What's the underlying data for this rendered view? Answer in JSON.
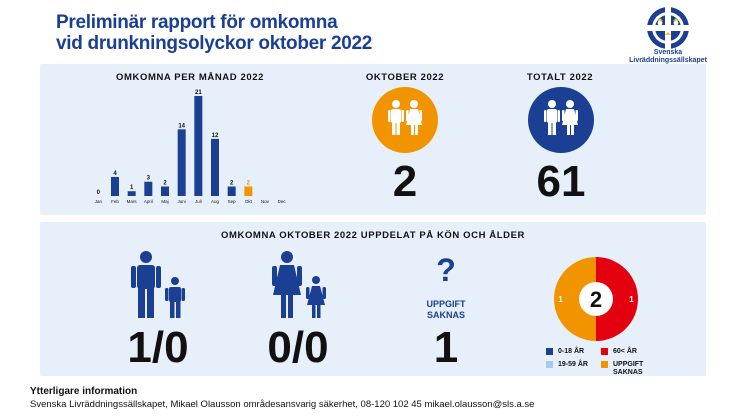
{
  "title_line1": "Preliminär rapport för omkomna",
  "title_line2": "vid drunkningsolyckor oktober 2022",
  "logo": {
    "icon": "lifesaving-crest-icon",
    "text_line1": "Svenska",
    "text_line2": "Livräddningssällskapet"
  },
  "colors": {
    "navy": "#1a3f93",
    "orange": "#f29400",
    "red": "#e3000f",
    "light_blue": "#a9c9ec",
    "panel": "#e7f0fa"
  },
  "chart_data": [
    {
      "type": "bar",
      "title": "OMKOMNA PER MÅNAD 2022",
      "categories": [
        "Jan",
        "Feb",
        "Mars",
        "April",
        "Maj",
        "Juni",
        "Juli",
        "Aug",
        "Sep",
        "Okt",
        "Nov",
        "Dec"
      ],
      "values": [
        0,
        4,
        1,
        3,
        2,
        14,
        21,
        12,
        2,
        2,
        null,
        null
      ],
      "highlight_index": 9,
      "ylim": [
        0,
        21
      ],
      "grid": false
    },
    {
      "type": "pie",
      "center_label": "2",
      "slices": [
        {
          "name": "0-18 ÅR",
          "value": 0
        },
        {
          "name": "19-59 ÅR",
          "value": 0
        },
        {
          "name": "60< ÅR",
          "value": 1
        },
        {
          "name": "UPPGIFT SAKNAS",
          "value": 1
        }
      ]
    }
  ],
  "oktober": {
    "heading": "OKTOBER 2022",
    "value": "2",
    "icon": "people-male-female-icon"
  },
  "totalt": {
    "heading": "TOTALT 2022",
    "value": "61",
    "icon": "people-male-female-icon"
  },
  "breakdown": {
    "heading": "OMKOMNA OKTOBER 2022 UPPDELAT PÅ KÖN OCH ÅLDER",
    "male": {
      "icon": "man-and-boy-icon",
      "value": "1/0"
    },
    "female": {
      "icon": "woman-and-girl-icon",
      "value": "0/0"
    },
    "unknown": {
      "icon": "question-mark-icon",
      "label_line1": "UPPGIFT",
      "label_line2": "SAKNAS",
      "value": "1"
    },
    "legend": [
      {
        "label": "0-18 ÅR",
        "color": "#1a3f93"
      },
      {
        "label": "60< ÅR",
        "color": "#e3000f"
      },
      {
        "label": "19-59 ÅR",
        "color": "#a9c9ec"
      },
      {
        "label_line1": "UPPGIFT",
        "label_line2": "SAKNAS",
        "color": "#f29400"
      }
    ]
  },
  "footer": {
    "title": "Ytterligare information",
    "text": "Svenska Livräddningssällskapet, Mikael Olausson områdesansvarig säkerhet, 08-120 102 45 mikael.olausson@sls.a.se"
  }
}
